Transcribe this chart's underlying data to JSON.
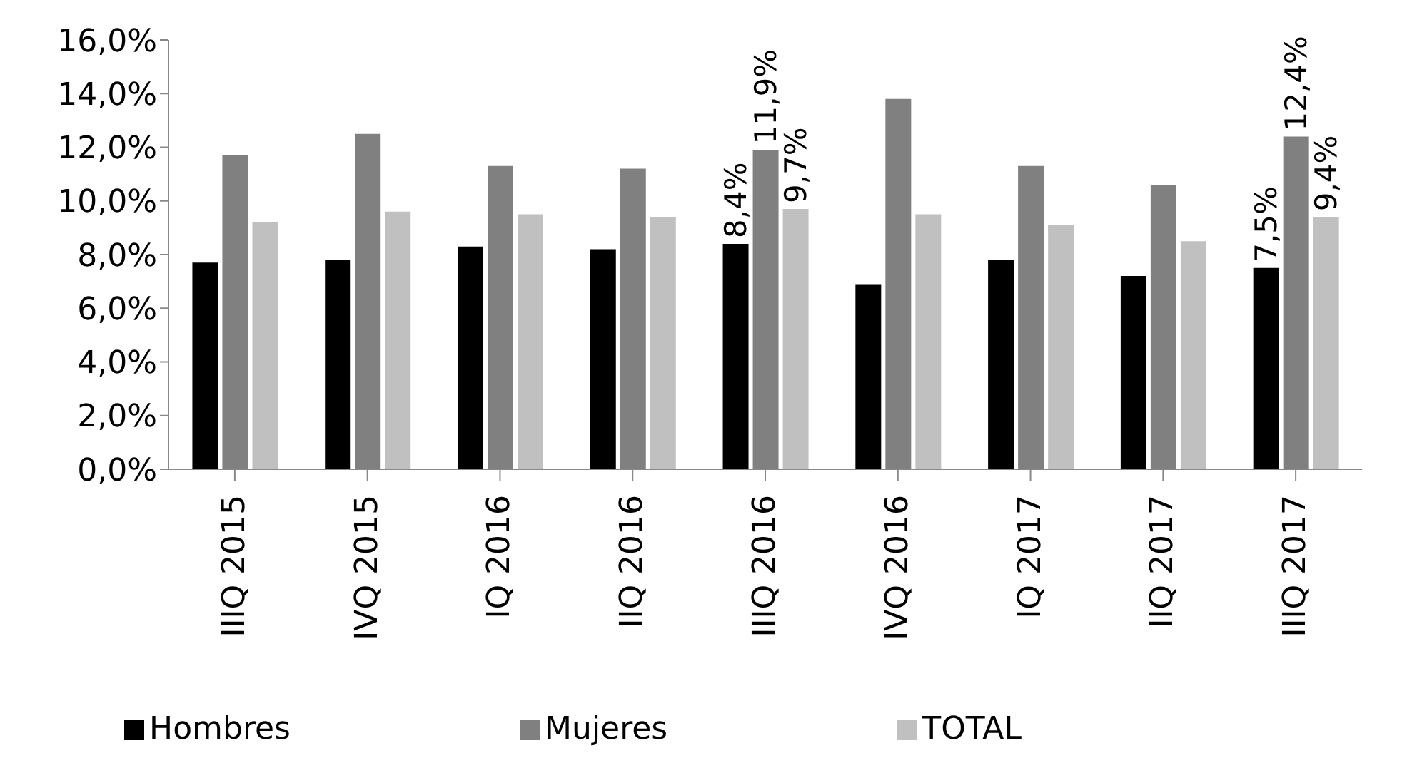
{
  "chart_data": {
    "type": "bar",
    "categories": [
      "IIIQ 2015",
      "IVQ 2015",
      "IQ 2016",
      "IIQ 2016",
      "IIIQ 2016",
      "IVQ 2016",
      "IQ 2017",
      "IIQ 2017",
      "IIIQ 2017"
    ],
    "series": [
      {
        "name": "Hombres",
        "color": "#000000",
        "values": [
          7.7,
          7.8,
          8.3,
          8.2,
          8.4,
          6.9,
          7.8,
          7.2,
          7.5
        ],
        "value_labels": [
          null,
          null,
          null,
          null,
          "8,4%",
          null,
          null,
          null,
          "7,5%"
        ]
      },
      {
        "name": "Mujeres",
        "color": "#808080",
        "values": [
          11.7,
          12.5,
          11.3,
          11.2,
          11.9,
          13.8,
          11.3,
          10.6,
          12.4
        ],
        "value_labels": [
          null,
          null,
          null,
          null,
          "11,9%",
          null,
          null,
          null,
          "12,4%"
        ]
      },
      {
        "name": "TOTAL",
        "color": "#c0c0c0",
        "values": [
          9.2,
          9.6,
          9.5,
          9.4,
          9.7,
          9.5,
          9.1,
          8.5,
          9.4
        ],
        "value_labels": [
          null,
          null,
          null,
          null,
          "9,7%",
          null,
          null,
          null,
          "9,4%"
        ]
      }
    ],
    "ylim": [
      0,
      16
    ],
    "yticks": [
      {
        "value": 0,
        "label": "0,0%"
      },
      {
        "value": 2,
        "label": "2,0%"
      },
      {
        "value": 4,
        "label": "4,0%"
      },
      {
        "value": 6,
        "label": "6,0%"
      },
      {
        "value": 8,
        "label": "8,0%"
      },
      {
        "value": 10,
        "label": "10,0%"
      },
      {
        "value": 12,
        "label": "12,0%"
      },
      {
        "value": 14,
        "label": "14,0%"
      },
      {
        "value": 16,
        "label": "16,0%"
      }
    ],
    "grid": false,
    "legend": "bottom"
  }
}
